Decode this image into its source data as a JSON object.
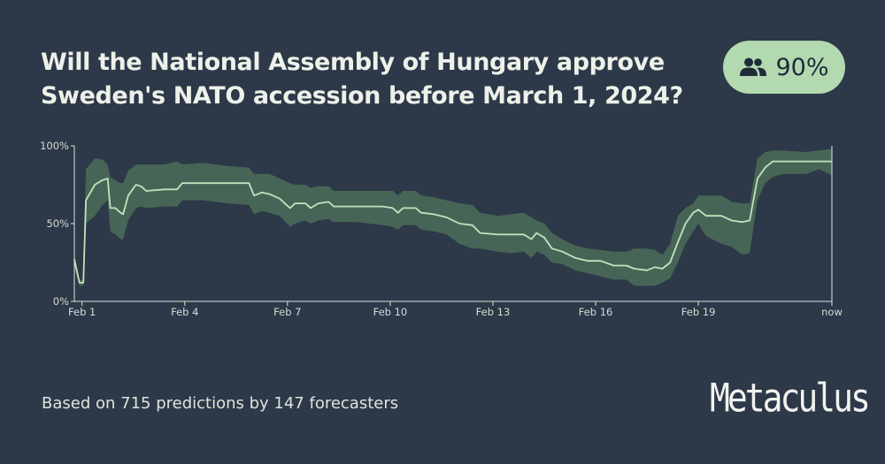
{
  "question": {
    "title": "Will the National Assembly of Hungary approve Sweden's NATO accession before March 1, 2024?"
  },
  "badge": {
    "icon": "people-icon",
    "value": "90%",
    "color": "#b3d9b0"
  },
  "footer": {
    "predictions_text": "Based on 715 predictions by 147 forecasters",
    "logo": "Metaculus"
  },
  "colors": {
    "background": "#2d3848",
    "line": "#c2e3bd",
    "band": "#4a6a58",
    "axis": "#dfe3dc"
  },
  "chart_data": {
    "type": "line",
    "xlim": [
      0,
      29.5
    ],
    "ylim": [
      0,
      100
    ],
    "yticks": [
      {
        "value": 0,
        "label": "0%"
      },
      {
        "value": 50,
        "label": "50%"
      },
      {
        "value": 100,
        "label": "100%"
      }
    ],
    "xticks": [
      {
        "value": 0.3,
        "label": "Feb 1"
      },
      {
        "value": 4.3,
        "label": "Feb 4"
      },
      {
        "value": 8.3,
        "label": "Feb 7"
      },
      {
        "value": 12.3,
        "label": "Feb 10"
      },
      {
        "value": 16.3,
        "label": "Feb 13"
      },
      {
        "value": 20.3,
        "label": "Feb 16"
      },
      {
        "value": 24.3,
        "label": "Feb 19"
      },
      {
        "value": 29.5,
        "label": "now"
      }
    ],
    "series": [
      {
        "values": [
          [
            0.0,
            27,
            22,
            30
          ],
          [
            0.2,
            12,
            10,
            14
          ],
          [
            0.35,
            12,
            10,
            14
          ],
          [
            0.45,
            65,
            50,
            85
          ],
          [
            0.8,
            75,
            55,
            92
          ],
          [
            1.1,
            78,
            62,
            91
          ],
          [
            1.3,
            79,
            65,
            88
          ],
          [
            1.4,
            60,
            45,
            80
          ],
          [
            1.6,
            60,
            43,
            78
          ],
          [
            1.8,
            57,
            40,
            76
          ],
          [
            1.9,
            56,
            40,
            76
          ],
          [
            2.1,
            68,
            52,
            84
          ],
          [
            2.4,
            75,
            60,
            88
          ],
          [
            2.6,
            74,
            61,
            88
          ],
          [
            2.8,
            71,
            60,
            88
          ],
          [
            3.5,
            72,
            61,
            88
          ],
          [
            4.0,
            72,
            61,
            90
          ],
          [
            4.2,
            76,
            65,
            88
          ],
          [
            5.0,
            76,
            65,
            89
          ],
          [
            6.0,
            76,
            63,
            87
          ],
          [
            6.8,
            76,
            62,
            86
          ],
          [
            7.0,
            68,
            56,
            82
          ],
          [
            7.3,
            70,
            58,
            82
          ],
          [
            7.6,
            69,
            57,
            82
          ],
          [
            8.0,
            66,
            55,
            79
          ],
          [
            8.4,
            60,
            48,
            76
          ],
          [
            8.6,
            63,
            50,
            75
          ],
          [
            9.0,
            63,
            52,
            75
          ],
          [
            9.2,
            60,
            50,
            73
          ],
          [
            9.5,
            63,
            52,
            74
          ],
          [
            9.9,
            64,
            53,
            74
          ],
          [
            10.1,
            61,
            51,
            71
          ],
          [
            11.0,
            61,
            51,
            71
          ],
          [
            12.0,
            61,
            49,
            71
          ],
          [
            12.4,
            60,
            48,
            71
          ],
          [
            12.6,
            57,
            46,
            68
          ],
          [
            12.8,
            60,
            49,
            71
          ],
          [
            13.3,
            60,
            49,
            71
          ],
          [
            13.5,
            57,
            46,
            68
          ],
          [
            14.0,
            56,
            45,
            67
          ],
          [
            14.5,
            54,
            43,
            65
          ],
          [
            15.0,
            50,
            37,
            63
          ],
          [
            15.5,
            49,
            34,
            62
          ],
          [
            15.8,
            44,
            34,
            57
          ],
          [
            16.5,
            43,
            32,
            55
          ],
          [
            17.0,
            43,
            31,
            56
          ],
          [
            17.5,
            43,
            32,
            57
          ],
          [
            17.8,
            40,
            28,
            54
          ],
          [
            18.0,
            44,
            32,
            52
          ],
          [
            18.3,
            41,
            30,
            50
          ],
          [
            18.6,
            34,
            25,
            44
          ],
          [
            19.0,
            32,
            24,
            40
          ],
          [
            19.5,
            28,
            20,
            36
          ],
          [
            20.0,
            26,
            18,
            34
          ],
          [
            20.5,
            26,
            16,
            33
          ],
          [
            21.0,
            23,
            14,
            32
          ],
          [
            21.5,
            23,
            14,
            32
          ],
          [
            21.8,
            21,
            10,
            34
          ],
          [
            22.3,
            20,
            10,
            34
          ],
          [
            22.6,
            22,
            10,
            33
          ],
          [
            22.9,
            21,
            12,
            30
          ],
          [
            23.2,
            25,
            15,
            37
          ],
          [
            23.5,
            38,
            25,
            55
          ],
          [
            23.8,
            50,
            37,
            60
          ],
          [
            24.1,
            57,
            45,
            63
          ],
          [
            24.3,
            59,
            50,
            68
          ],
          [
            24.6,
            55,
            42,
            68
          ],
          [
            25.2,
            55,
            37,
            68
          ],
          [
            25.6,
            52,
            35,
            64
          ],
          [
            26.0,
            51,
            30,
            63
          ],
          [
            26.3,
            52,
            31,
            63
          ],
          [
            26.6,
            79,
            65,
            92
          ],
          [
            26.9,
            86,
            76,
            96
          ],
          [
            27.2,
            90,
            80,
            97
          ],
          [
            27.6,
            90,
            82,
            97
          ],
          [
            28.5,
            90,
            82,
            96
          ],
          [
            29.0,
            90,
            85,
            97
          ],
          [
            29.5,
            90,
            81,
            98
          ]
        ]
      }
    ]
  }
}
